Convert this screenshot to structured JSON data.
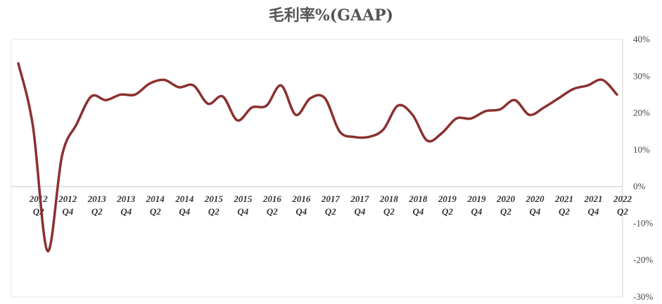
{
  "chart_data": {
    "type": "line",
    "title": "毛利率%(GAAP)",
    "xlabel": "",
    "ylabel": "",
    "ylim": [
      -30,
      40
    ],
    "y_ticks": [
      "40%",
      "30%",
      "20%",
      "10%",
      "0%",
      "-10%",
      "-20%",
      "-30%"
    ],
    "y_tick_values": [
      40,
      30,
      20,
      10,
      0,
      -10,
      -20,
      -30
    ],
    "y_axis_position": "right",
    "grid": false,
    "legend": "none",
    "x_tick_labels": [
      {
        "year": "2012",
        "q": "Q2"
      },
      {
        "year": "2012",
        "q": "Q4"
      },
      {
        "year": "2013",
        "q": "Q2"
      },
      {
        "year": "2013",
        "q": "Q4"
      },
      {
        "year": "2014",
        "q": "Q2"
      },
      {
        "year": "2014",
        "q": "Q4"
      },
      {
        "year": "2015",
        "q": "Q2"
      },
      {
        "year": "2015",
        "q": "Q4"
      },
      {
        "year": "2016",
        "q": "Q2"
      },
      {
        "year": "2016",
        "q": "Q4"
      },
      {
        "year": "2017",
        "q": "Q2"
      },
      {
        "year": "2017",
        "q": "Q4"
      },
      {
        "year": "2018",
        "q": "Q2"
      },
      {
        "year": "2018",
        "q": "Q4"
      },
      {
        "year": "2019",
        "q": "Q2"
      },
      {
        "year": "2019",
        "q": "Q4"
      },
      {
        "year": "2020",
        "q": "Q2"
      },
      {
        "year": "2020",
        "q": "Q4"
      },
      {
        "year": "2021",
        "q": "Q2"
      },
      {
        "year": "2021",
        "q": "Q4"
      },
      {
        "year": "2022",
        "q": "Q2"
      }
    ],
    "categories": [
      "2012Q1",
      "2012Q2",
      "2012Q3",
      "2012Q4",
      "2013Q1",
      "2013Q2",
      "2013Q3",
      "2013Q4",
      "2014Q1",
      "2014Q2",
      "2014Q3",
      "2014Q4",
      "2015Q1",
      "2015Q2",
      "2015Q3",
      "2015Q4",
      "2016Q1",
      "2016Q2",
      "2016Q3",
      "2016Q4",
      "2017Q1",
      "2017Q2",
      "2017Q3",
      "2017Q4",
      "2018Q1",
      "2018Q2",
      "2018Q3",
      "2018Q4",
      "2019Q1",
      "2019Q2",
      "2019Q3",
      "2019Q4",
      "2020Q1",
      "2020Q2",
      "2020Q3",
      "2020Q4",
      "2021Q1",
      "2021Q2",
      "2021Q3",
      "2021Q4",
      "2022Q1",
      "2022Q2"
    ],
    "series": [
      {
        "color": "#8b3030",
        "values": [
          33.5,
          16.5,
          -17.5,
          8.5,
          17.0,
          24.5,
          23.5,
          25.0,
          25.0,
          28.0,
          29.0,
          27.0,
          27.5,
          22.5,
          24.5,
          18.0,
          21.5,
          22.0,
          27.5,
          19.5,
          24.0,
          24.0,
          15.0,
          13.5,
          13.5,
          15.5,
          22.0,
          19.5,
          12.5,
          14.5,
          18.5,
          18.5,
          20.5,
          21.0,
          23.5,
          19.5,
          21.5,
          24.0,
          26.5,
          27.5,
          29.0,
          25.0
        ]
      }
    ]
  }
}
